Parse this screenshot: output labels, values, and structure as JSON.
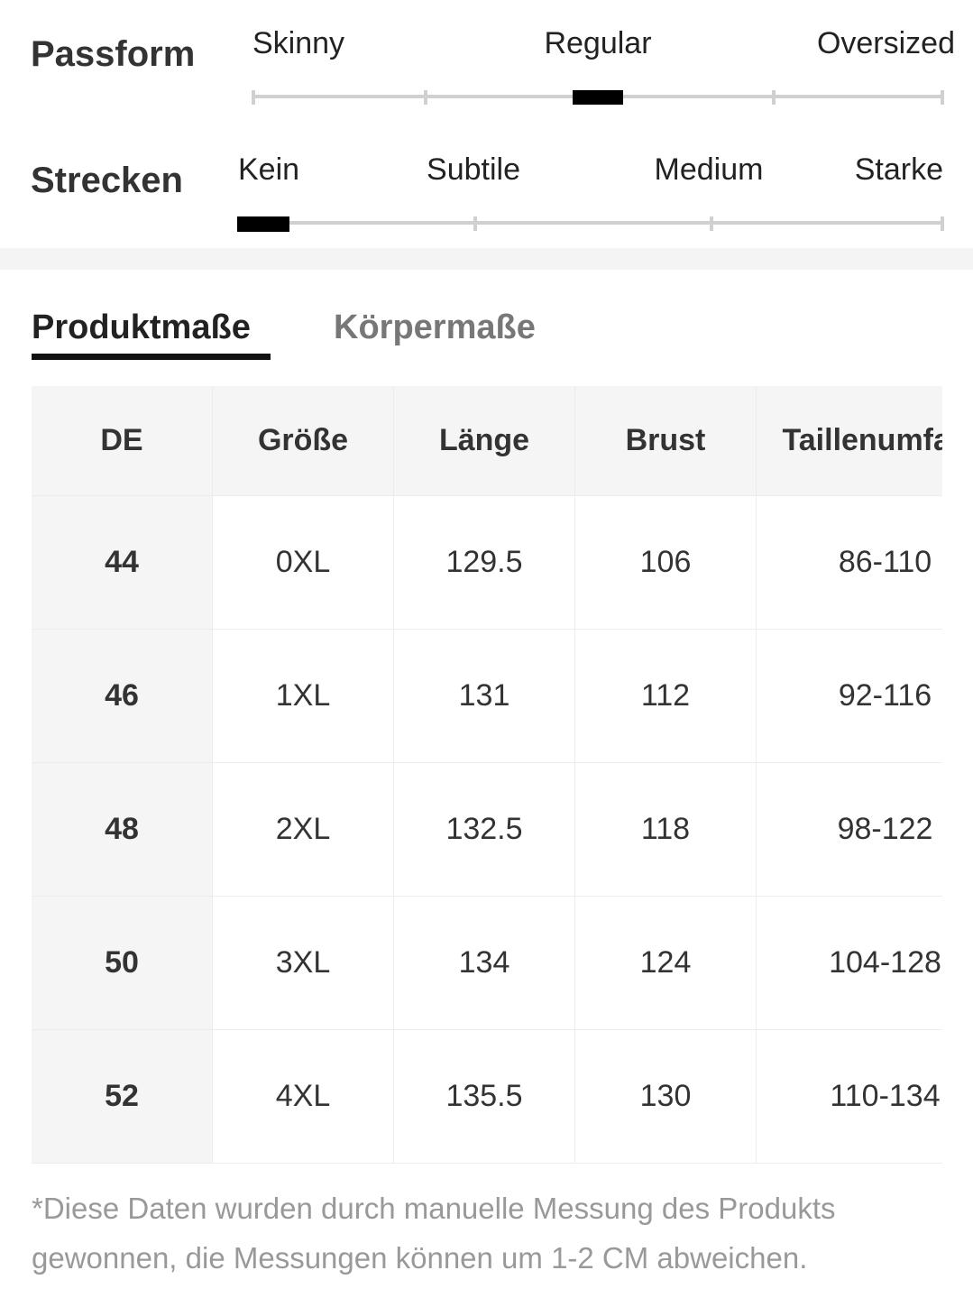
{
  "fit": {
    "label": "Passform",
    "options": [
      "Skinny",
      "Regular",
      "Oversized"
    ]
  },
  "stretch": {
    "label": "Strecken",
    "options": [
      "Kein",
      "Subtile",
      "Medium",
      "Starke"
    ]
  },
  "tabs": [
    "Produktmaße",
    "Körpermaße"
  ],
  "table": {
    "header": [
      "DE",
      "Größe",
      "Länge",
      "Brust",
      "Taillenumfang"
    ],
    "rows": [
      [
        "44",
        "0XL",
        "129.5",
        "106",
        "86-110"
      ],
      [
        "46",
        "1XL",
        "131",
        "112",
        "92-116"
      ],
      [
        "48",
        "2XL",
        "132.5",
        "118",
        "98-122"
      ],
      [
        "50",
        "3XL",
        "134",
        "124",
        "104-128"
      ],
      [
        "52",
        "4XL",
        "135.5",
        "130",
        "110-134"
      ]
    ]
  },
  "note": "*Diese Daten wurden durch manuelle Messung des Produkts gewonnen, die Messungen können um 1-2 CM abweichen."
}
